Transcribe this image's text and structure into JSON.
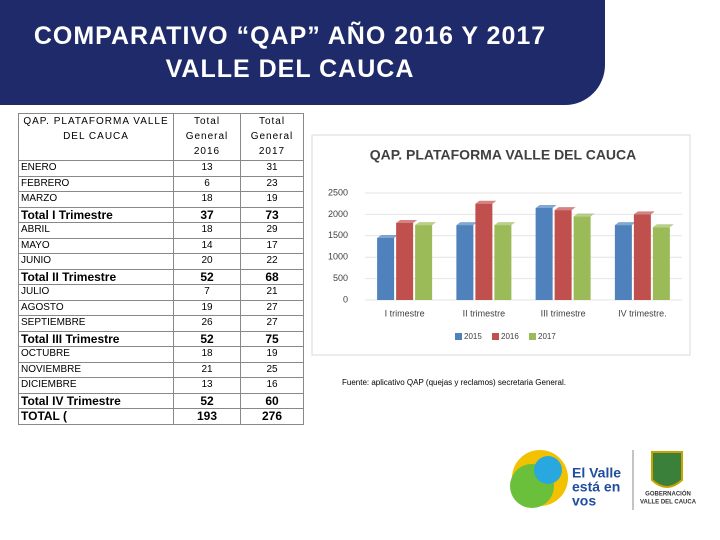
{
  "header": {
    "title": "COMPARATIVO “QAP” AÑO 2016 Y 2017 VALLE DEL CAUCA"
  },
  "table": {
    "columns": [
      "QAP. PLATAFORMA VALLE DEL CAUCA",
      "Total General 2016",
      "Total General 2017"
    ],
    "sections": [
      {
        "rows": [
          [
            "ENERO",
            13,
            31
          ],
          [
            "FEBRERO",
            6,
            23
          ],
          [
            "MARZO",
            18,
            19
          ]
        ],
        "total": [
          "Total I Trimestre",
          37,
          73
        ]
      },
      {
        "rows": [
          [
            "ABRIL",
            18,
            29
          ],
          [
            "MAYO",
            14,
            17
          ],
          [
            "JUNIO",
            20,
            22
          ]
        ],
        "total": [
          "Total II Trimestre",
          52,
          68
        ]
      },
      {
        "rows": [
          [
            "JULIO",
            7,
            21
          ],
          [
            "AGOSTO",
            19,
            27
          ],
          [
            "SEPTIEMBRE",
            26,
            27
          ]
        ],
        "total": [
          "Total III Trimestre",
          52,
          75
        ]
      },
      {
        "rows": [
          [
            "OCTUBRE",
            18,
            19
          ],
          [
            "NOVIEMBRE",
            21,
            25
          ],
          [
            "DICIEMBRE",
            13,
            16
          ]
        ],
        "total": [
          "Total IV Trimestre",
          52,
          60
        ]
      }
    ],
    "grand_total": [
      "TOTAL (",
      193,
      276
    ]
  },
  "chart_data": {
    "type": "bar",
    "title": "QAP. PLATAFORMA VALLE DEL CAUCA",
    "categories": [
      "I trimestre",
      "II trimestre",
      "III trimestre",
      "IV trimestre."
    ],
    "series": [
      {
        "name": "2015",
        "color": "#4f81bd",
        "values": [
          1450,
          1750,
          2150,
          1750
        ]
      },
      {
        "name": "2016",
        "color": "#c0504d",
        "values": [
          1800,
          2250,
          2100,
          2000
        ]
      },
      {
        "name": "2017",
        "color": "#9bbb59",
        "values": [
          1750,
          1750,
          1950,
          1700
        ]
      }
    ],
    "ylim": [
      0,
      2500
    ],
    "yticks": [
      0,
      500,
      1000,
      1500,
      2000,
      2500
    ],
    "legend": "bottom"
  },
  "source": "Fuente: aplicativo QAP (quejas y reclamos) secretaria General.",
  "logos": {
    "brand": [
      "El Valle",
      "está en",
      "vos"
    ],
    "government": [
      "GOBERNACIÓN",
      "VALLE DEL CAUCA"
    ]
  }
}
